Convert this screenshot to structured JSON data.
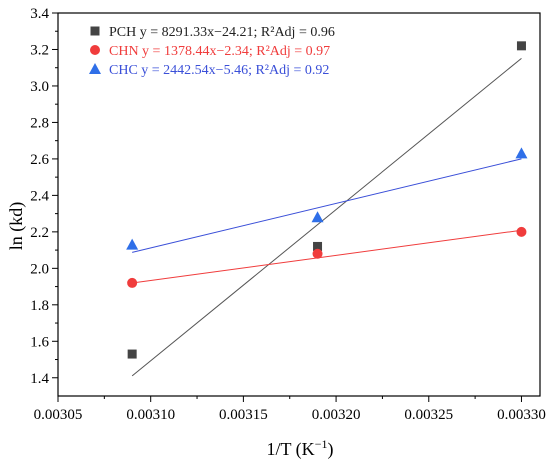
{
  "chart_data": {
    "type": "scatter",
    "xlabel": "1/T (K",
    "xlabel_superscript": "−1",
    "xlabel_suffix": ")",
    "ylabel": "ln (kd)",
    "xlim": [
      0.00305,
      0.00331
    ],
    "ylim": [
      1.3,
      3.4
    ],
    "xticks": [
      0.00305,
      0.0031,
      0.00315,
      0.0032,
      0.00325,
      0.0033
    ],
    "xtick_labels": [
      "0.00305",
      "0.00310",
      "0.00315",
      "0.00320",
      "0.00325",
      "0.00330"
    ],
    "yticks": [
      1.4,
      1.6,
      1.8,
      2.0,
      2.2,
      2.4,
      2.6,
      2.8,
      3.0,
      3.2,
      3.4
    ],
    "ytick_labels": [
      "1.4",
      "1.6",
      "1.8",
      "2.0",
      "2.2",
      "2.4",
      "2.6",
      "2.8",
      "3.0",
      "3.2",
      "3.4"
    ],
    "grid": false,
    "legend_position": "top-left",
    "series": [
      {
        "name": "PCH",
        "legend_text": "PCH y = 8291.33x−24.21; R²Adj = 0.96",
        "marker": "square",
        "color": "#444444",
        "fit_color": "#555555",
        "x": [
          0.00309,
          0.00319,
          0.0033
        ],
        "y": [
          1.53,
          2.12,
          3.22
        ],
        "fit": {
          "slope": 8291.33,
          "intercept": -24.21
        }
      },
      {
        "name": "CHN",
        "legend_text": "CHN y = 1378.44x−2.34; R²Adj = 0.97",
        "marker": "circle",
        "color": "#f03c3c",
        "fit_color": "#f03c3c",
        "x": [
          0.00309,
          0.00319,
          0.0033
        ],
        "y": [
          1.92,
          2.08,
          2.2
        ],
        "fit": {
          "slope": 1378.44,
          "intercept": -2.34
        }
      },
      {
        "name": "CHC",
        "legend_text": "CHC y = 2442.54x−5.46; R²Adj = 0.92",
        "marker": "triangle",
        "color": "#2f6fe8",
        "fit_color": "#3a4fd8",
        "x": [
          0.00309,
          0.00319,
          0.0033
        ],
        "y": [
          2.13,
          2.28,
          2.63
        ],
        "fit": {
          "slope": 2442.54,
          "intercept": -5.46
        }
      }
    ]
  }
}
